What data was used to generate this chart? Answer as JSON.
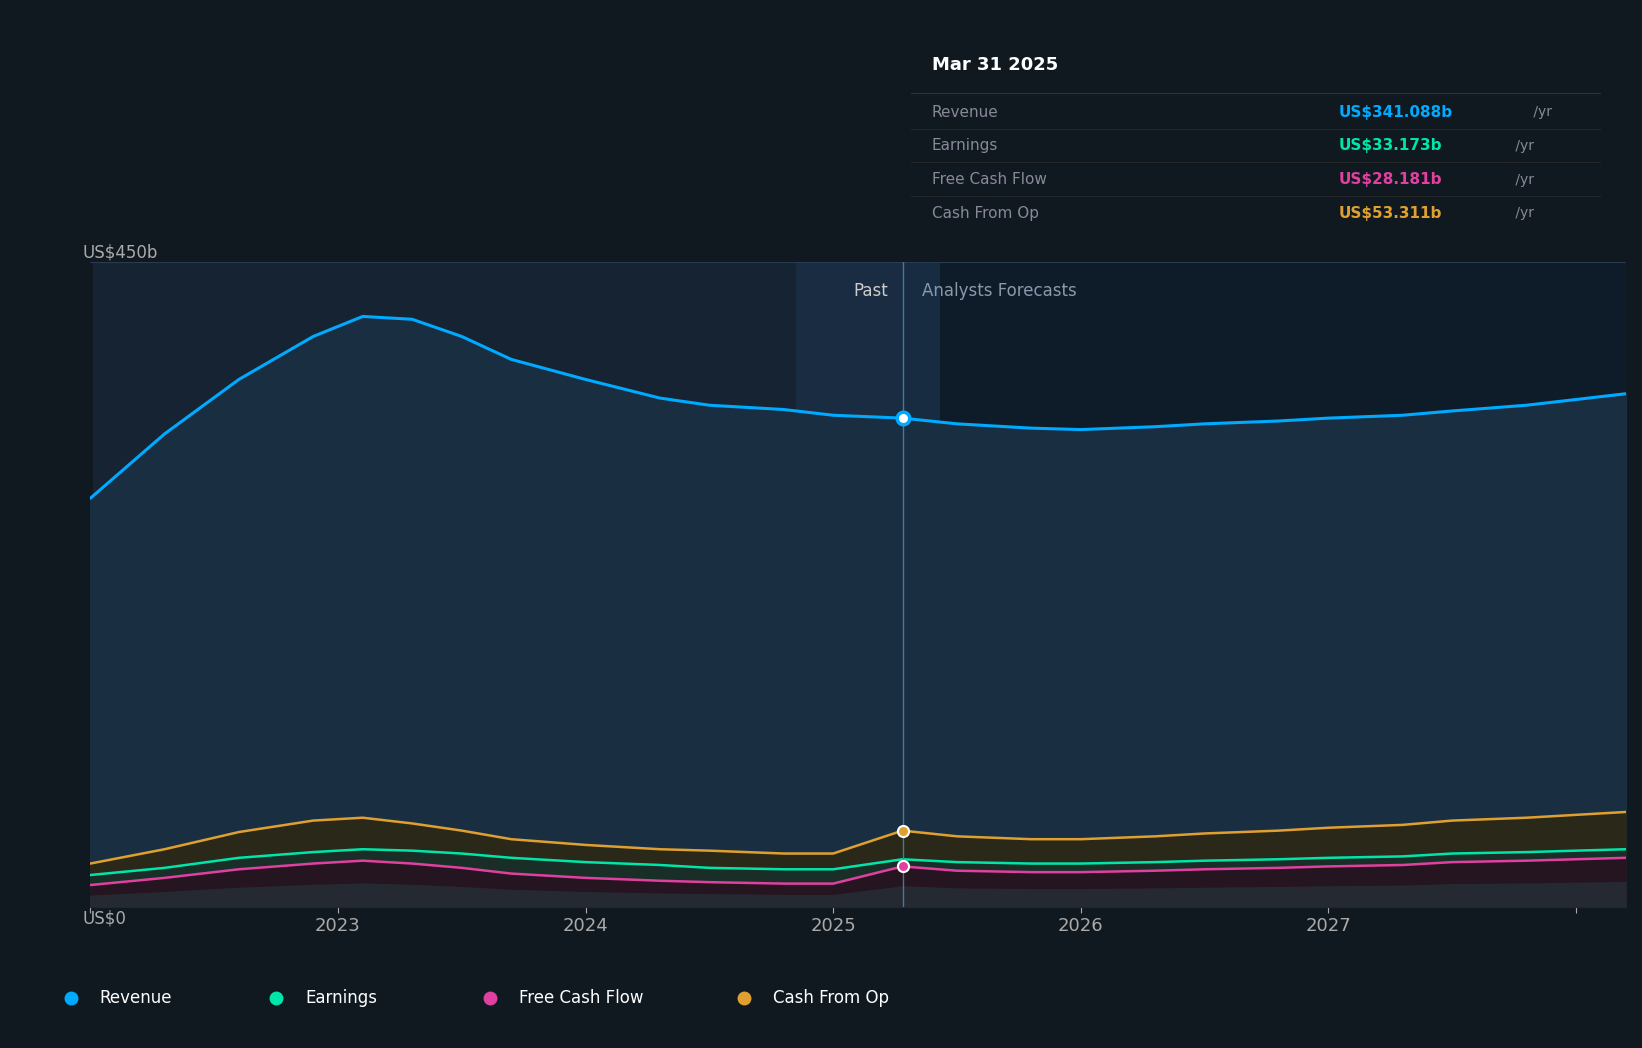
{
  "bg_color": "#111920",
  "plot_bg_left": "#152333",
  "plot_bg_right": "#0e1c2a",
  "plot_bg_stripe": "#1a2e44",
  "ylabel": "US$450b",
  "y0_label": "US$0",
  "x_min": 2022.0,
  "x_max": 2028.2,
  "y_min": 0,
  "y_max": 450,
  "divider_x": 2025.28,
  "past_label": "Past",
  "forecast_label": "Analysts Forecasts",
  "tooltip_date": "Mar 31 2025",
  "tooltip_items": [
    {
      "label": "Revenue",
      "value": "US$341.088b",
      "unit": " /yr",
      "color": "#00aaff"
    },
    {
      "label": "Earnings",
      "value": "US$33.173b",
      "unit": " /yr",
      "color": "#00e5aa"
    },
    {
      "label": "Free Cash Flow",
      "value": "US$28.181b",
      "unit": " /yr",
      "color": "#e040a0"
    },
    {
      "label": "Cash From Op",
      "value": "US$53.311b",
      "unit": " /yr",
      "color": "#e0a030"
    }
  ],
  "legend_items": [
    {
      "label": "Revenue",
      "color": "#00aaff"
    },
    {
      "label": "Earnings",
      "color": "#00e5aa"
    },
    {
      "label": "Free Cash Flow",
      "color": "#e040a0"
    },
    {
      "label": "Cash From Op",
      "color": "#e0a030"
    }
  ],
  "revenue_x": [
    2022.0,
    2022.3,
    2022.6,
    2022.9,
    2023.1,
    2023.3,
    2023.5,
    2023.7,
    2024.0,
    2024.3,
    2024.5,
    2024.8,
    2025.0,
    2025.28,
    2025.5,
    2025.8,
    2026.0,
    2026.3,
    2026.5,
    2026.8,
    2027.0,
    2027.3,
    2027.5,
    2027.8,
    2028.2
  ],
  "revenue_y": [
    285,
    330,
    368,
    398,
    412,
    410,
    398,
    382,
    368,
    355,
    350,
    347,
    343,
    341,
    337,
    334,
    333,
    335,
    337,
    339,
    341,
    343,
    346,
    350,
    358
  ],
  "earnings_x": [
    2022.0,
    2022.3,
    2022.6,
    2022.9,
    2023.1,
    2023.3,
    2023.5,
    2023.7,
    2024.0,
    2024.3,
    2024.5,
    2024.8,
    2025.0,
    2025.28,
    2025.5,
    2025.8,
    2026.0,
    2026.3,
    2026.5,
    2026.8,
    2027.0,
    2027.3,
    2027.5,
    2027.8,
    2028.2
  ],
  "earnings_y": [
    22,
    27,
    34,
    38,
    40,
    39,
    37,
    34,
    31,
    29,
    27,
    26,
    26,
    33,
    31,
    30,
    30,
    31,
    32,
    33,
    34,
    35,
    37,
    38,
    40
  ],
  "fcf_x": [
    2022.0,
    2022.3,
    2022.6,
    2022.9,
    2023.1,
    2023.3,
    2023.5,
    2023.7,
    2024.0,
    2024.3,
    2024.5,
    2024.8,
    2025.0,
    2025.28,
    2025.5,
    2025.8,
    2026.0,
    2026.3,
    2026.5,
    2026.8,
    2027.0,
    2027.3,
    2027.5,
    2027.8,
    2028.2
  ],
  "fcf_y": [
    15,
    20,
    26,
    30,
    32,
    30,
    27,
    23,
    20,
    18,
    17,
    16,
    16,
    28,
    25,
    24,
    24,
    25,
    26,
    27,
    28,
    29,
    31,
    32,
    34
  ],
  "cashfromop_x": [
    2022.0,
    2022.3,
    2022.6,
    2022.9,
    2023.1,
    2023.3,
    2023.5,
    2023.7,
    2024.0,
    2024.3,
    2024.5,
    2024.8,
    2025.0,
    2025.28,
    2025.5,
    2025.8,
    2026.0,
    2026.3,
    2026.5,
    2026.8,
    2027.0,
    2027.3,
    2027.5,
    2027.8,
    2028.2
  ],
  "cashfromop_y": [
    30,
    40,
    52,
    60,
    62,
    58,
    53,
    47,
    43,
    40,
    39,
    37,
    37,
    53,
    49,
    47,
    47,
    49,
    51,
    53,
    55,
    57,
    60,
    62,
    66
  ]
}
